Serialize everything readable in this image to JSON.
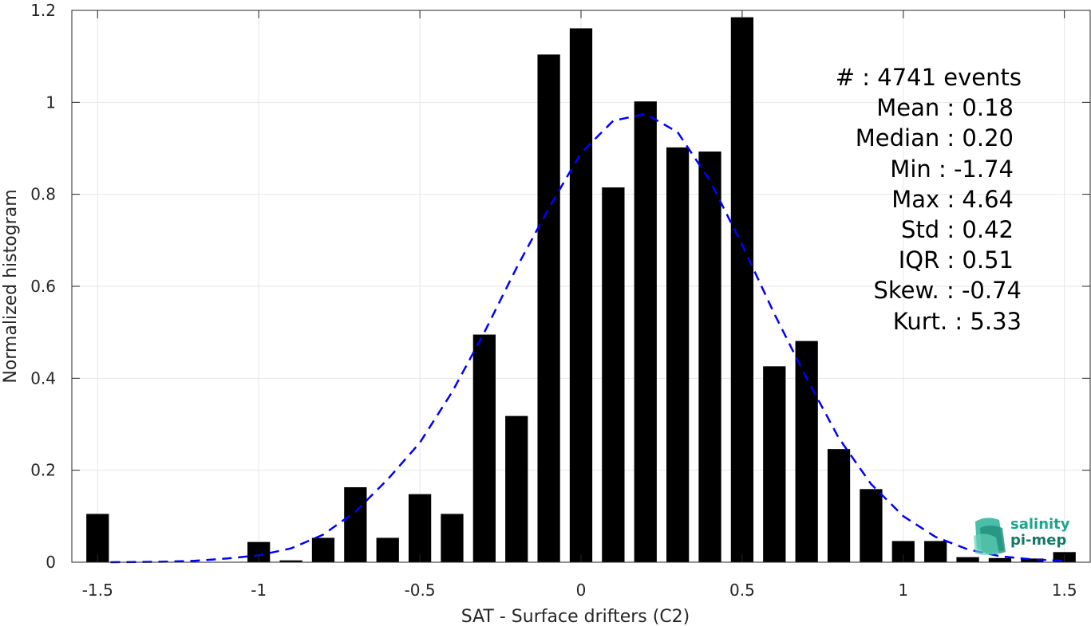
{
  "chart_data": {
    "type": "bar",
    "xlabel": "SAT - Surface drifters (C2)",
    "ylabel": "Normalized histogram",
    "xlim": [
      -1.58,
      1.58
    ],
    "ylim": [
      0,
      1.2
    ],
    "xticks": [
      -1.5,
      -1,
      -0.5,
      0,
      0.5,
      1,
      1.5
    ],
    "xtick_labels": [
      "-1.5",
      "-1",
      "-0.5",
      "0",
      "0.5",
      "1",
      "1.5"
    ],
    "yticks": [
      0,
      0.2,
      0.4,
      0.6,
      0.8,
      1,
      1.2
    ],
    "ytick_labels": [
      "0",
      "0.2",
      "0.4",
      "0.6",
      "0.8",
      "1",
      "1.2"
    ],
    "grid": true,
    "bar_width": 0.07,
    "bars": {
      "x": [
        -1.5,
        -1.0,
        -0.9,
        -0.8,
        -0.7,
        -0.6,
        -0.5,
        -0.4,
        -0.3,
        -0.2,
        -0.1,
        0.0,
        0.1,
        0.2,
        0.3,
        0.4,
        0.5,
        0.6,
        0.7,
        0.8,
        0.9,
        1.0,
        1.1,
        1.2,
        1.3,
        1.4,
        1.5
      ],
      "values": [
        0.105,
        0.044,
        0.004,
        0.053,
        0.163,
        0.053,
        0.148,
        0.105,
        0.495,
        0.318,
        1.104,
        1.161,
        0.815,
        1.002,
        0.902,
        0.893,
        1.185,
        0.426,
        0.481,
        0.246,
        0.159,
        0.046,
        0.046,
        0.011,
        0.009,
        0.008,
        0.022
      ],
      "color": "#000000"
    },
    "fit": {
      "style": "dashed",
      "color": "#0000ff",
      "x": [
        -1.46,
        -1.3,
        -1.2,
        -1.1,
        -1.0,
        -0.9,
        -0.8,
        -0.7,
        -0.6,
        -0.5,
        -0.4,
        -0.3,
        -0.2,
        -0.1,
        0.0,
        0.1,
        0.2,
        0.3,
        0.4,
        0.5,
        0.6,
        0.7,
        0.8,
        0.9,
        1.0,
        1.1,
        1.2,
        1.3,
        1.4,
        1.5
      ],
      "y": [
        0.0,
        0.001,
        0.003,
        0.008,
        0.015,
        0.03,
        0.06,
        0.11,
        0.18,
        0.26,
        0.37,
        0.5,
        0.64,
        0.77,
        0.89,
        0.96,
        0.975,
        0.935,
        0.83,
        0.69,
        0.54,
        0.4,
        0.27,
        0.17,
        0.1,
        0.055,
        0.028,
        0.013,
        0.006,
        0.003
      ]
    }
  },
  "stats": [
    "#  : 4741 events",
    "Mean : 0.18",
    "Median : 0.20",
    "Min : -1.74",
    "Max : 4.64",
    "Std : 0.42",
    "IQR : 0.51",
    "Skew. : -0.74",
    "Kurt. : 5.33"
  ],
  "logo": {
    "line1": "salinity",
    "line2": "pi-mep",
    "color1": "#1aa58c",
    "color2": "#137a6a"
  }
}
